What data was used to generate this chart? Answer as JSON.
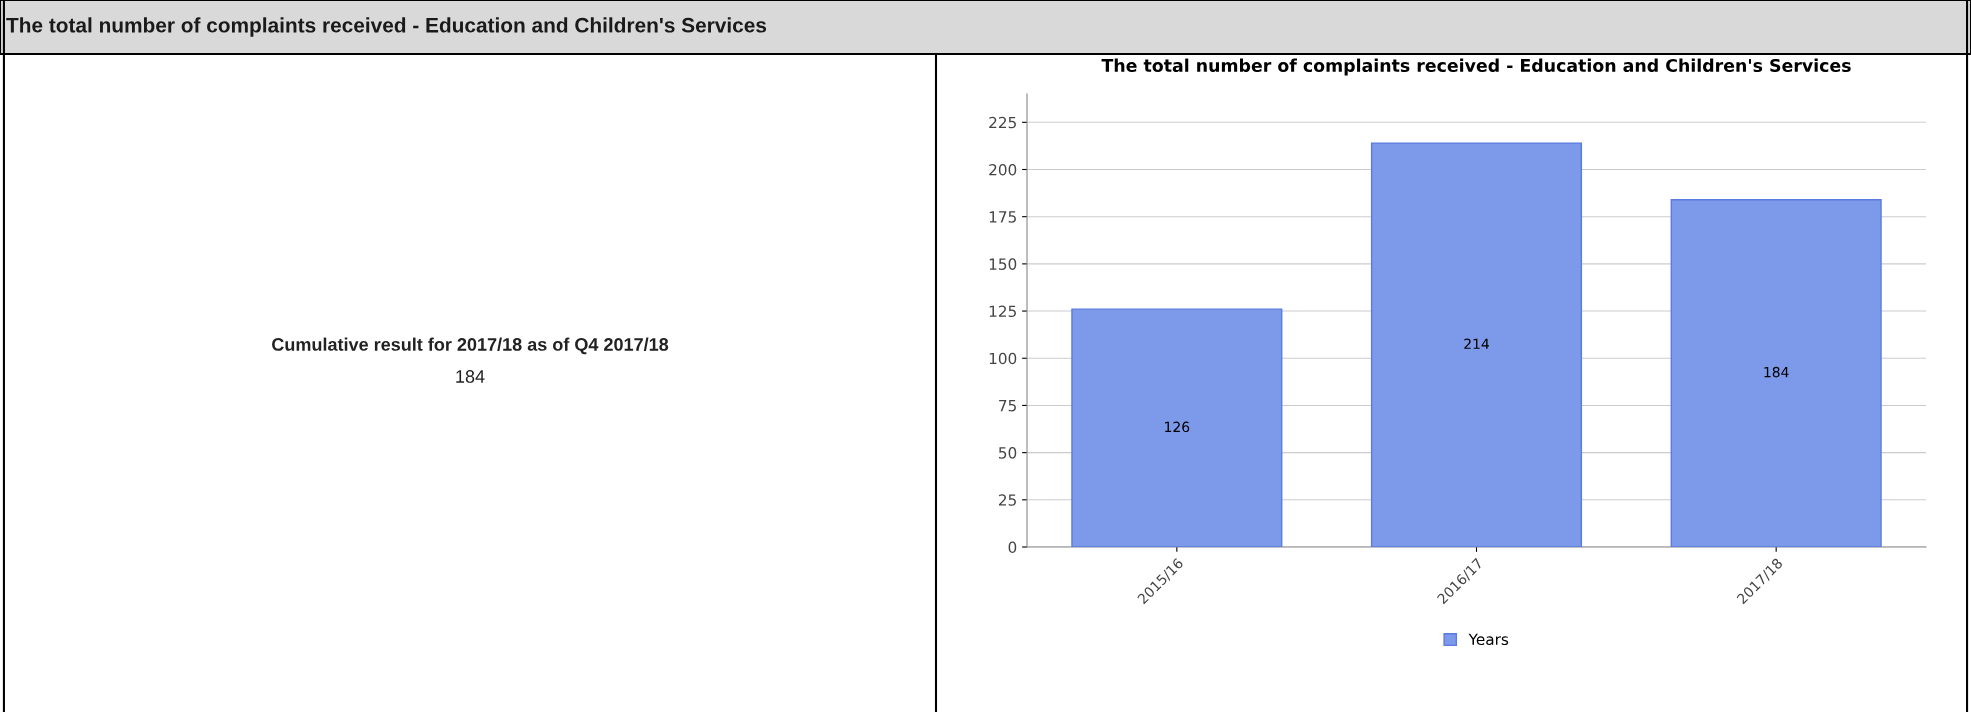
{
  "chart_data": [
    {
      "type": "other",
      "title": "The total number of complaints received - Education and Children's Services",
      "annotations": [
        "Cumulative result for 2017/18 as of Q4 2017/18",
        "184"
      ]
    },
    {
      "type": "bar",
      "title": "The total number of complaints received - Education and Children's Services",
      "categories": [
        "2015/16",
        "2016/17",
        "2017/18"
      ],
      "series": [
        {
          "name": "Years",
          "color": "#7d99e9",
          "values": [
            126,
            214,
            184
          ]
        }
      ],
      "ylim": [
        0,
        240
      ],
      "yticks": [
        0,
        25,
        50,
        75,
        100,
        125,
        150,
        175,
        200,
        225
      ],
      "grid": "y",
      "legend": "bottom",
      "data_labels": true
    }
  ]
}
